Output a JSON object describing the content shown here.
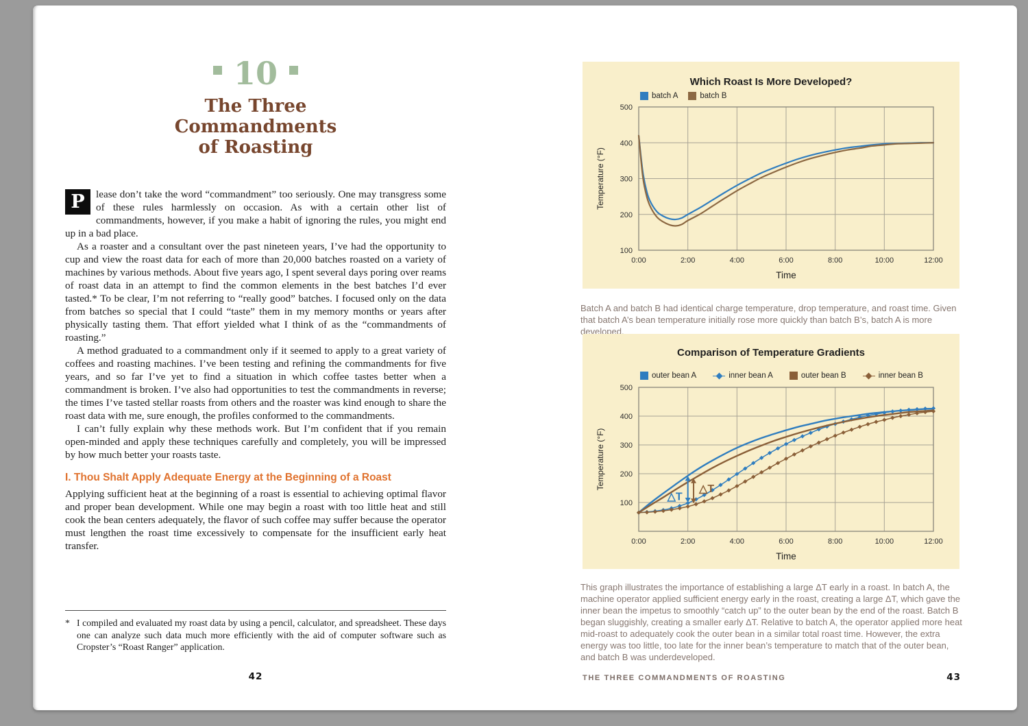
{
  "stage": {
    "background": "#9b9b9b",
    "paper": "#ffffff"
  },
  "left_page": {
    "chapter_number": "10",
    "title_lines": [
      "The Three",
      "Commandments",
      "of Roasting"
    ],
    "dropcap_letter": "P",
    "paragraphs": {
      "p1": "lease don’t take the word “commandment” too seriously. One may transgress some of these rules harmlessly on occasion. As with a certain other list of commandments, however, if you make a habit of ignoring the rules, you might end up in a bad place.",
      "p2": "As a roaster and a consultant over the past nineteen years, I’ve had the opportunity to cup and view the roast data for each of more than 20,000 batches roasted on a variety of machines by various methods. About five years ago, I spent several days poring over reams of roast data in an attempt to find the common elements in the best batches I’d ever tasted.* To be clear, I’m not referring to “really good” batches. I focused only on the data from batches so special that I could “taste” them in my memory months or years after physically tasting them. That effort yielded what I think of as the “commandments of roasting.”",
      "p3": "A method graduated to a commandment only if it seemed to apply to a great variety of coffees and roasting machines. I’ve been testing and refining the commandments for five years, and so far I’ve yet to find a situation in which coffee tastes better when a commandment is broken. I’ve also had opportunities to test the commandments in reverse; the times I’ve tasted stellar roasts from others and the roaster was kind enough to share the roast data with me, sure enough, the profiles conformed to the commandments.",
      "p4": "I can’t fully explain why these methods work. But I’m confident that if you remain open-minded and apply these techniques carefully and completely, you will be impressed by how much better your roasts taste.",
      "p5": "Applying sufficient heat at the beginning of a roast is essential to achieving optimal flavor and proper bean development. While one may begin a roast with too little heat and still cook the bean centers adequately, the flavor of such coffee may suffer because the operator must lengthen the roast time excessively to compensate for the insufficient early heat transfer."
    },
    "commandment_heading": "I. Thou Shalt Apply Adequate Energy at the Beginning of a Roast",
    "footnote_star": "*",
    "footnote": "I compiled and evaluated my roast data by using a pencil, calculator, and spreadsheet. These days one can analyze such data much more efficiently with the aid of computer software such as Cropster’s “Roast Ranger” application.",
    "page_number": "42",
    "colors": {
      "chapter_green": "#a2bc9c",
      "title_brown": "#77462e",
      "heading_orange": "#e0722e"
    }
  },
  "right_page": {
    "caption1": "Batch A and batch B had identical charge temperature, drop temperature, and roast time. Given that batch A’s bean temperature initially rose more quickly than batch B’s, batch A is more developed.",
    "caption2": "This graph illustrates the importance of establishing a large ΔT early in a roast. In batch A, the machine operator applied sufficient energy early in the roast, creating a large ΔT, which gave the inner bean the impetus to smoothly “catch up” to the outer bean by the end of the roast. Batch B began sluggishly, creating a smaller early ΔT. Relative to batch A, the operator applied more heat mid-roast to adequately cook the outer bean in a similar total roast time. However, the extra energy was too little, too late for the inner bean’s temperature to match that of the outer bean, and batch B was underdeveloped.",
    "footer_text": "THE THREE COMMANDMENTS OF ROASTING",
    "page_number": "43",
    "panel_background": "#f9efcb",
    "caption_color": "#86766f"
  },
  "chart_data": [
    {
      "type": "line",
      "title": "Which Roast Is More Developed?",
      "xlabel": "Time",
      "ylabel": "Temperature (°F)",
      "xlim_minutes": [
        0,
        720
      ],
      "ylim": [
        100,
        500
      ],
      "xtick_minutes": [
        0,
        120,
        240,
        360,
        480,
        600,
        720
      ],
      "xtick_labels": [
        "0:00",
        "2:00",
        "4:00",
        "6:00",
        "8:00",
        "10:00",
        "12:00"
      ],
      "ytick_values": [
        100,
        200,
        300,
        400,
        500
      ],
      "background": "#f9efcb",
      "grid_color": "#a8a395",
      "border_color": "#87847a",
      "series": [
        {
          "name": "batch A",
          "color": "#2f7dbf",
          "marker": "none",
          "width": 2.2,
          "points": [
            [
              0,
              420
            ],
            [
              10,
              318
            ],
            [
              20,
              262
            ],
            [
              30,
              232
            ],
            [
              45,
              207
            ],
            [
              60,
              195
            ],
            [
              75,
              188
            ],
            [
              90,
              186
            ],
            [
              105,
              190
            ],
            [
              120,
              200
            ],
            [
              150,
              219
            ],
            [
              180,
              240
            ],
            [
              210,
              261
            ],
            [
              240,
              281
            ],
            [
              270,
              299
            ],
            [
              300,
              316
            ],
            [
              330,
              330
            ],
            [
              360,
              343
            ],
            [
              390,
              355
            ],
            [
              420,
              365
            ],
            [
              450,
              373
            ],
            [
              480,
              380
            ],
            [
              510,
              386
            ],
            [
              540,
              390
            ],
            [
              570,
              394
            ],
            [
              600,
              397
            ],
            [
              630,
              398
            ],
            [
              660,
              399
            ],
            [
              690,
              400
            ],
            [
              720,
              400
            ]
          ]
        },
        {
          "name": "batch B",
          "color": "#8c6842",
          "marker": "none",
          "width": 2.2,
          "points": [
            [
              0,
              420
            ],
            [
              10,
              305
            ],
            [
              20,
              248
            ],
            [
              30,
              218
            ],
            [
              45,
              192
            ],
            [
              60,
              179
            ],
            [
              75,
              171
            ],
            [
              90,
              168
            ],
            [
              105,
              172
            ],
            [
              120,
              183
            ],
            [
              150,
              201
            ],
            [
              180,
              223
            ],
            [
              210,
              245
            ],
            [
              240,
              266
            ],
            [
              270,
              285
            ],
            [
              300,
              303
            ],
            [
              330,
              318
            ],
            [
              360,
              332
            ],
            [
              390,
              345
            ],
            [
              420,
              356
            ],
            [
              450,
              365
            ],
            [
              480,
              373
            ],
            [
              510,
              380
            ],
            [
              540,
              385
            ],
            [
              570,
              391
            ],
            [
              600,
              394
            ],
            [
              630,
              397
            ],
            [
              660,
              398
            ],
            [
              690,
              399
            ],
            [
              720,
              400
            ]
          ]
        }
      ]
    },
    {
      "type": "line",
      "title": "Comparison of Temperature Gradients",
      "xlabel": "Time",
      "ylabel": "Temperature (°F)",
      "xlim_minutes": [
        0,
        720
      ],
      "ylim": [
        0,
        500
      ],
      "xtick_minutes": [
        0,
        120,
        240,
        360,
        480,
        600,
        720
      ],
      "xtick_labels": [
        "0:00",
        "2:00",
        "4:00",
        "6:00",
        "8:00",
        "10:00",
        "12:00"
      ],
      "ytick_values": [
        100,
        200,
        300,
        400,
        500
      ],
      "background": "#f9efcb",
      "grid_color": "#a8a395",
      "border_color": "#87847a",
      "series": [
        {
          "name": "outer bean A",
          "color": "#2f7dbf",
          "marker": "none",
          "width": 2.4,
          "points": [
            [
              0,
              65
            ],
            [
              30,
              100
            ],
            [
              60,
              132
            ],
            [
              90,
              163
            ],
            [
              120,
              193
            ],
            [
              150,
              221
            ],
            [
              180,
              246
            ],
            [
              210,
              269
            ],
            [
              240,
              290
            ],
            [
              270,
              308
            ],
            [
              300,
              324
            ],
            [
              330,
              338
            ],
            [
              360,
              351
            ],
            [
              390,
              363
            ],
            [
              420,
              373
            ],
            [
              450,
              383
            ],
            [
              480,
              391
            ],
            [
              510,
              398
            ],
            [
              540,
              404
            ],
            [
              570,
              410
            ],
            [
              600,
              414
            ],
            [
              630,
              418
            ],
            [
              660,
              421
            ],
            [
              690,
              424
            ],
            [
              720,
              426
            ]
          ]
        },
        {
          "name": "inner bean A",
          "color": "#2f7dbf",
          "marker": "diamond",
          "width": 1.5,
          "points": [
            [
              0,
              65
            ],
            [
              20,
              67
            ],
            [
              40,
              70
            ],
            [
              60,
              74
            ],
            [
              80,
              80
            ],
            [
              100,
              88
            ],
            [
              120,
              98
            ],
            [
              140,
              111
            ],
            [
              160,
              126
            ],
            [
              180,
              143
            ],
            [
              200,
              161
            ],
            [
              220,
              180
            ],
            [
              240,
              199
            ],
            [
              260,
              218
            ],
            [
              280,
              237
            ],
            [
              300,
              255
            ],
            [
              320,
              272
            ],
            [
              340,
              288
            ],
            [
              360,
              303
            ],
            [
              380,
              317
            ],
            [
              400,
              330
            ],
            [
              420,
              342
            ],
            [
              440,
              354
            ],
            [
              460,
              364
            ],
            [
              480,
              373
            ],
            [
              500,
              381
            ],
            [
              520,
              389
            ],
            [
              540,
              396
            ],
            [
              560,
              402
            ],
            [
              580,
              407
            ],
            [
              600,
              412
            ],
            [
              620,
              416
            ],
            [
              640,
              419
            ],
            [
              660,
              422
            ],
            [
              680,
              424
            ],
            [
              700,
              426
            ],
            [
              720,
              427
            ]
          ]
        },
        {
          "name": "outer bean B",
          "color": "#8a5f38",
          "marker": "none",
          "width": 2.4,
          "points": [
            [
              0,
              65
            ],
            [
              30,
              92
            ],
            [
              60,
              118
            ],
            [
              90,
              145
            ],
            [
              120,
              171
            ],
            [
              150,
              196
            ],
            [
              180,
              220
            ],
            [
              210,
              242
            ],
            [
              240,
              262
            ],
            [
              270,
              281
            ],
            [
              300,
              298
            ],
            [
              330,
              314
            ],
            [
              360,
              328
            ],
            [
              390,
              341
            ],
            [
              420,
              353
            ],
            [
              450,
              364
            ],
            [
              480,
              374
            ],
            [
              510,
              383
            ],
            [
              540,
              391
            ],
            [
              570,
              398
            ],
            [
              600,
              404
            ],
            [
              630,
              409
            ],
            [
              660,
              414
            ],
            [
              690,
              417
            ],
            [
              720,
              420
            ]
          ]
        },
        {
          "name": "inner bean B",
          "color": "#8a5f38",
          "marker": "diamond",
          "width": 1.5,
          "points": [
            [
              0,
              65
            ],
            [
              20,
              66
            ],
            [
              40,
              68
            ],
            [
              60,
              71
            ],
            [
              80,
              75
            ],
            [
              100,
              80
            ],
            [
              120,
              86
            ],
            [
              140,
              94
            ],
            [
              160,
              104
            ],
            [
              180,
              115
            ],
            [
              200,
              128
            ],
            [
              220,
              142
            ],
            [
              240,
              157
            ],
            [
              260,
              173
            ],
            [
              280,
              189
            ],
            [
              300,
              205
            ],
            [
              320,
              221
            ],
            [
              340,
              237
            ],
            [
              360,
              252
            ],
            [
              380,
              267
            ],
            [
              400,
              281
            ],
            [
              420,
              295
            ],
            [
              440,
              308
            ],
            [
              460,
              320
            ],
            [
              480,
              332
            ],
            [
              500,
              343
            ],
            [
              520,
              353
            ],
            [
              540,
              363
            ],
            [
              560,
              372
            ],
            [
              580,
              380
            ],
            [
              600,
              387
            ],
            [
              620,
              394
            ],
            [
              640,
              400
            ],
            [
              660,
              405
            ],
            [
              680,
              410
            ],
            [
              700,
              414
            ],
            [
              720,
              417
            ]
          ]
        }
      ],
      "annotations": [
        {
          "x_minutes": 120,
          "y_from": 100,
          "y_to": 192,
          "color": "#2f7dbf",
          "label": "△T",
          "label_side": "left"
        },
        {
          "x_minutes": 134,
          "y_from": 97,
          "y_to": 184,
          "color": "#8a5f38",
          "label": "△T",
          "label_side": "right"
        }
      ]
    }
  ]
}
